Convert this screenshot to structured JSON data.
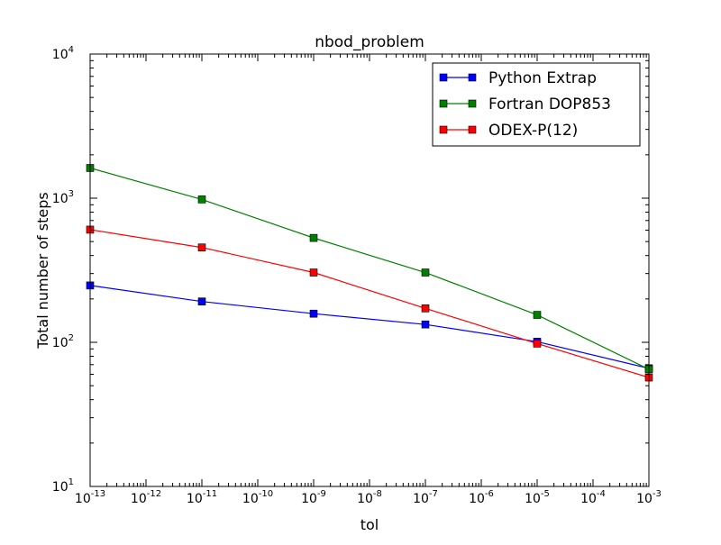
{
  "chart_data": {
    "type": "line",
    "title": "nbod_problem",
    "xlabel": "tol",
    "ylabel": "Total number of steps",
    "xscale": "log",
    "yscale": "log",
    "xlim": [
      1e-13,
      0.001
    ],
    "ylim": [
      10,
      10000
    ],
    "grid": false,
    "legend_position": "top-right",
    "x": [
      1e-13,
      1e-11,
      1e-09,
      1e-07,
      1e-05,
      0.001
    ],
    "x_ticks": [
      {
        "base": "10",
        "exp": "-13"
      },
      {
        "base": "10",
        "exp": "-12"
      },
      {
        "base": "10",
        "exp": "-11"
      },
      {
        "base": "10",
        "exp": "-10"
      },
      {
        "base": "10",
        "exp": "-9"
      },
      {
        "base": "10",
        "exp": "-8"
      },
      {
        "base": "10",
        "exp": "-7"
      },
      {
        "base": "10",
        "exp": "-6"
      },
      {
        "base": "10",
        "exp": "-5"
      },
      {
        "base": "10",
        "exp": "-4"
      },
      {
        "base": "10",
        "exp": "-3"
      }
    ],
    "y_ticks": [
      {
        "base": "10",
        "exp": "1"
      },
      {
        "base": "10",
        "exp": "2"
      },
      {
        "base": "10",
        "exp": "3"
      },
      {
        "base": "10",
        "exp": "4"
      }
    ],
    "series": [
      {
        "name": "Python Extrap",
        "color": "#0000ff",
        "values": [
          248,
          192,
          158,
          133,
          101,
          66
        ]
      },
      {
        "name": "Fortran DOP853",
        "color": "#008000",
        "values": [
          1620,
          980,
          530,
          305,
          155,
          65
        ]
      },
      {
        "name": "ODEX-P(12)",
        "color": "#ff0000",
        "values": [
          605,
          455,
          305,
          172,
          98,
          57
        ]
      }
    ]
  }
}
